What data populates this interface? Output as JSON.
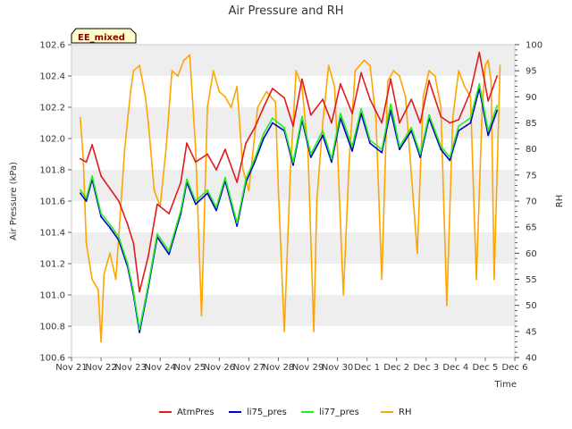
{
  "chart_data": {
    "type": "line",
    "title": "Air Pressure and RH",
    "badge": "EE_mixed",
    "xlabel": "Time",
    "ylabel": "Air Pressure (kPa)",
    "y2label": "RH",
    "x_ticks": [
      "Nov 21",
      "Nov 22",
      "Nov 23",
      "Nov 24",
      "Nov 25",
      "Nov 26",
      "Nov 27",
      "Nov 28",
      "Nov 29",
      "Nov 30",
      "Dec 1",
      "Dec 2",
      "Dec 3",
      "Dec 4",
      "Dec 5",
      "Dec 6"
    ],
    "xlim": [
      0,
      15
    ],
    "ylim": [
      100.6,
      102.6
    ],
    "y_ticks": [
      "100.6",
      "100.8",
      "101.0",
      "101.2",
      "101.4",
      "101.6",
      "101.8",
      "102.0",
      "102.2",
      "102.4",
      "102.6"
    ],
    "y2lim": [
      40,
      100
    ],
    "y2_ticks": [
      "40",
      "45",
      "50",
      "55",
      "60",
      "65",
      "70",
      "75",
      "80",
      "85",
      "90",
      "95",
      "100"
    ],
    "grid": true,
    "legend_position": "bottom",
    "colors": {
      "AtmPres": "#e31a1c",
      "li75_pres": "#0000cc",
      "li77_pres": "#22ee22",
      "RH": "#ffa500",
      "band": "#eeeeee"
    },
    "series": [
      {
        "name": "AtmPres",
        "axis": "left",
        "x": [
          0.3,
          0.5,
          0.7,
          1.0,
          1.3,
          1.6,
          1.9,
          2.1,
          2.3,
          2.6,
          2.9,
          3.3,
          3.7,
          3.9,
          4.2,
          4.6,
          4.9,
          5.2,
          5.6,
          5.9,
          6.2,
          6.5,
          6.8,
          7.2,
          7.5,
          7.8,
          8.1,
          8.5,
          8.8,
          9.1,
          9.5,
          9.8,
          10.1,
          10.5,
          10.8,
          11.1,
          11.5,
          11.8,
          12.1,
          12.5,
          12.8,
          13.1,
          13.5,
          13.8,
          14.1,
          14.4
        ],
        "y": [
          101.87,
          101.85,
          101.96,
          101.76,
          101.68,
          101.6,
          101.45,
          101.33,
          101.02,
          101.25,
          101.58,
          101.52,
          101.72,
          101.97,
          101.85,
          101.9,
          101.8,
          101.93,
          101.72,
          101.97,
          102.07,
          102.2,
          102.32,
          102.26,
          102.08,
          102.38,
          102.15,
          102.25,
          102.1,
          102.35,
          102.16,
          102.42,
          102.25,
          102.1,
          102.38,
          102.1,
          102.25,
          102.1,
          102.37,
          102.14,
          102.1,
          102.12,
          102.3,
          102.55,
          102.24,
          102.4
        ]
      },
      {
        "name": "li75_pres",
        "axis": "left",
        "x": [
          0.3,
          0.5,
          0.7,
          1.0,
          1.3,
          1.6,
          1.9,
          2.1,
          2.3,
          2.6,
          2.9,
          3.3,
          3.7,
          3.9,
          4.2,
          4.6,
          4.9,
          5.2,
          5.6,
          5.9,
          6.2,
          6.5,
          6.8,
          7.2,
          7.5,
          7.8,
          8.1,
          8.5,
          8.8,
          9.1,
          9.5,
          9.8,
          10.1,
          10.5,
          10.8,
          11.1,
          11.5,
          11.8,
          12.1,
          12.5,
          12.8,
          13.1,
          13.5,
          13.8,
          14.1,
          14.4
        ],
        "y": [
          101.65,
          101.6,
          101.74,
          101.5,
          101.43,
          101.35,
          101.18,
          101.0,
          100.76,
          101.05,
          101.37,
          101.26,
          101.52,
          101.72,
          101.58,
          101.65,
          101.54,
          101.73,
          101.44,
          101.72,
          101.85,
          102.0,
          102.1,
          102.05,
          101.83,
          102.12,
          101.88,
          102.02,
          101.85,
          102.13,
          101.92,
          102.16,
          101.97,
          101.91,
          102.18,
          101.93,
          102.05,
          101.88,
          102.13,
          101.93,
          101.86,
          102.05,
          102.1,
          102.32,
          102.02,
          102.18
        ]
      },
      {
        "name": "li77_pres",
        "axis": "left",
        "x": [
          0.3,
          0.5,
          0.7,
          1.0,
          1.3,
          1.6,
          1.9,
          2.1,
          2.3,
          2.6,
          2.9,
          3.3,
          3.7,
          3.9,
          4.2,
          4.6,
          4.9,
          5.2,
          5.6,
          5.9,
          6.2,
          6.5,
          6.8,
          7.2,
          7.5,
          7.8,
          8.1,
          8.5,
          8.8,
          9.1,
          9.5,
          9.8,
          10.1,
          10.5,
          10.8,
          11.1,
          11.5,
          11.8,
          12.1,
          12.5,
          12.8,
          13.1,
          13.5,
          13.8,
          14.1,
          14.4
        ],
        "y": [
          101.67,
          101.62,
          101.76,
          101.52,
          101.45,
          101.37,
          101.2,
          101.02,
          100.78,
          101.07,
          101.39,
          101.28,
          101.54,
          101.74,
          101.6,
          101.67,
          101.56,
          101.75,
          101.46,
          101.74,
          101.87,
          102.03,
          102.13,
          102.07,
          101.85,
          102.14,
          101.9,
          102.05,
          101.87,
          102.16,
          101.95,
          102.19,
          101.99,
          101.93,
          102.22,
          101.95,
          102.07,
          101.9,
          102.15,
          101.95,
          101.88,
          102.08,
          102.13,
          102.35,
          102.05,
          102.21
        ]
      },
      {
        "name": "RH",
        "axis": "right",
        "x": [
          0.3,
          0.4,
          0.5,
          0.7,
          0.9,
          1.0,
          1.1,
          1.3,
          1.5,
          1.8,
          2.0,
          2.1,
          2.3,
          2.5,
          2.6,
          2.8,
          3.0,
          3.2,
          3.4,
          3.6,
          3.8,
          4.0,
          4.2,
          4.4,
          4.6,
          4.8,
          5.0,
          5.2,
          5.4,
          5.6,
          5.8,
          6.0,
          6.3,
          6.6,
          6.9,
          7.0,
          7.2,
          7.4,
          7.6,
          7.8,
          8.0,
          8.2,
          8.3,
          8.5,
          8.7,
          8.9,
          9.0,
          9.2,
          9.4,
          9.6,
          9.9,
          10.1,
          10.3,
          10.5,
          10.7,
          10.9,
          11.1,
          11.3,
          11.5,
          11.7,
          11.9,
          12.1,
          12.3,
          12.5,
          12.7,
          12.9,
          13.1,
          13.3,
          13.5,
          13.7,
          13.9,
          14.0,
          14.1,
          14.2,
          14.3,
          14.5
        ],
        "y": [
          86,
          78,
          62,
          55,
          53,
          43,
          56,
          60,
          55,
          80,
          91,
          95,
          96,
          90,
          85,
          72,
          69,
          80,
          95,
          94,
          97,
          98,
          80,
          48,
          88,
          95,
          91,
          90,
          88,
          92,
          76,
          72,
          88,
          91,
          89,
          72,
          45,
          75,
          95,
          92,
          80,
          45,
          70,
          85,
          96,
          92,
          80,
          52,
          78,
          95,
          97,
          96,
          86,
          55,
          93,
          95,
          94,
          90,
          75,
          60,
          90,
          95,
          94,
          88,
          50,
          86,
          95,
          92,
          90,
          55,
          88,
          96,
          97,
          93,
          55,
          96
        ]
      }
    ]
  },
  "legend": [
    {
      "label": "AtmPres",
      "color": "#e31a1c"
    },
    {
      "label": "li75_pres",
      "color": "#0000cc"
    },
    {
      "label": "li77_pres",
      "color": "#22ee22"
    },
    {
      "label": "RH",
      "color": "#ffa500"
    }
  ]
}
